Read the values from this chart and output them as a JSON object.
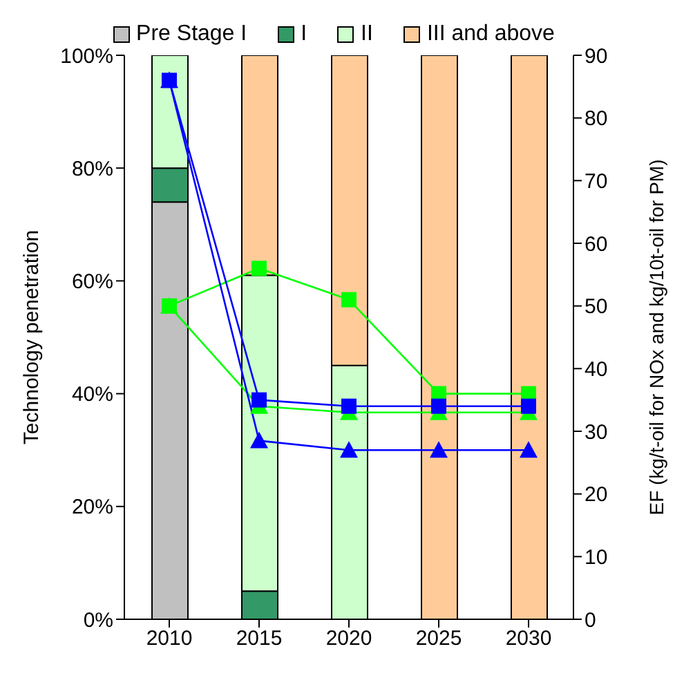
{
  "chart_data": {
    "type": "bar",
    "stacked": true,
    "categories": [
      "2010",
      "2015",
      "2020",
      "2025",
      "2030"
    ],
    "ylabel": "Technology penetration",
    "y2label": "EF (kg/t-oil for NOx and kg/10t-oil for PM)",
    "ylim": [
      0,
      100
    ],
    "yticks": [
      {
        "value": 0,
        "label": "0%"
      },
      {
        "value": 20,
        "label": "20%"
      },
      {
        "value": 40,
        "label": "40%"
      },
      {
        "value": 60,
        "label": "60%"
      },
      {
        "value": 80,
        "label": "80%"
      },
      {
        "value": 100,
        "label": "100%"
      }
    ],
    "y2lim": [
      0,
      90
    ],
    "y2ticks": [
      0,
      10,
      20,
      30,
      40,
      50,
      60,
      70,
      80,
      90
    ],
    "legend": "top",
    "grid": false,
    "series": [
      {
        "name": "Pre Stage I",
        "color": "#c0c0c0",
        "values": [
          74,
          0,
          0,
          0,
          0
        ]
      },
      {
        "name": "I",
        "color": "#339966",
        "values": [
          6,
          5,
          0,
          0,
          0
        ]
      },
      {
        "name": "II",
        "color": "#ccffcc",
        "values": [
          20,
          56,
          45,
          0,
          0
        ]
      },
      {
        "name": "III and above",
        "color": "#ffcc99",
        "values": [
          0,
          39,
          55,
          100,
          100
        ]
      },
      {
        "type": "line",
        "axis": "y2",
        "marker": "square",
        "color": "#00ff00",
        "values": [
          50,
          56,
          51,
          36,
          36
        ]
      },
      {
        "type": "line",
        "axis": "y2",
        "marker": "triangle",
        "color": "#00ff00",
        "values": [
          50,
          34,
          33,
          33,
          33
        ]
      },
      {
        "type": "line",
        "axis": "y2",
        "marker": "square",
        "color": "#0000ff",
        "values": [
          86,
          35,
          34,
          34,
          34
        ]
      },
      {
        "type": "line",
        "axis": "y2",
        "marker": "triangle",
        "color": "#0000ff",
        "values": [
          86,
          28.5,
          27,
          27,
          27
        ]
      }
    ]
  }
}
